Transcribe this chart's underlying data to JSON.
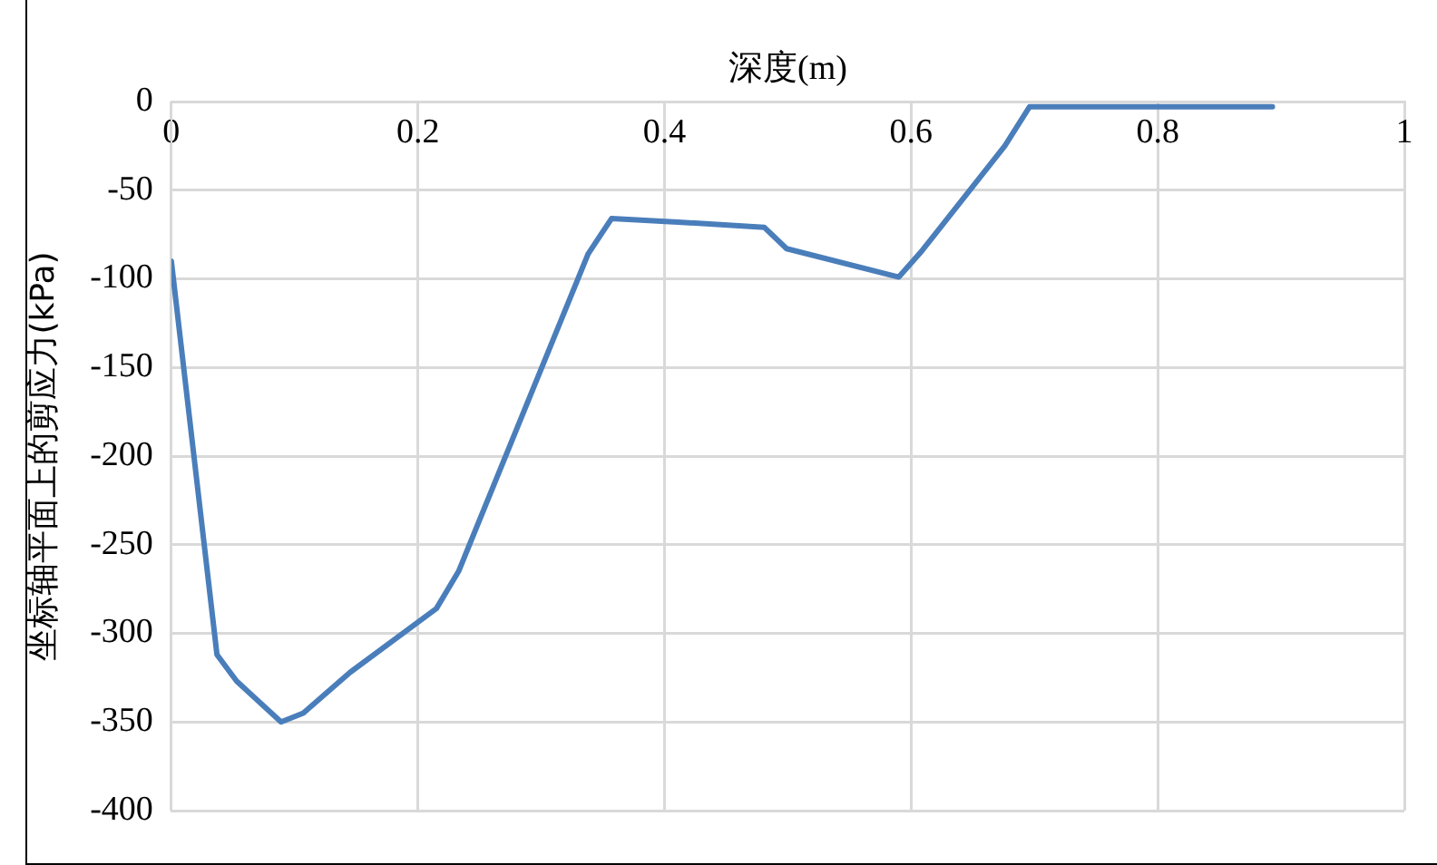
{
  "chart_data": {
    "type": "line",
    "xlabel": "深度(m)",
    "ylabel": "坐标轴平面上的剪应力(kPa)",
    "series": [
      {
        "color": "#4a7ebb",
        "x": [
          0,
          0.037,
          0.053,
          0.089,
          0.107,
          0.145,
          0.215,
          0.233,
          0.338,
          0.357,
          0.411,
          0.481,
          0.499,
          0.59,
          0.609,
          0.676,
          0.696,
          0.893
        ],
        "values": [
          -90,
          -312,
          -327,
          -350,
          -345,
          -322,
          -286,
          -265,
          -86,
          -66,
          -68,
          -71,
          -83,
          -99,
          -84,
          -25,
          -3,
          -3
        ]
      }
    ],
    "xlim": [
      0,
      1
    ],
    "xticks": [
      0,
      0.2,
      0.4,
      0.6,
      0.8,
      1
    ],
    "ylim": [
      -400,
      0
    ],
    "yticks": [
      -400,
      -350,
      -300,
      -250,
      -200,
      -150,
      -100,
      -50,
      0
    ],
    "grid": true,
    "legend": false,
    "marker": "none",
    "line_style": "solid"
  }
}
